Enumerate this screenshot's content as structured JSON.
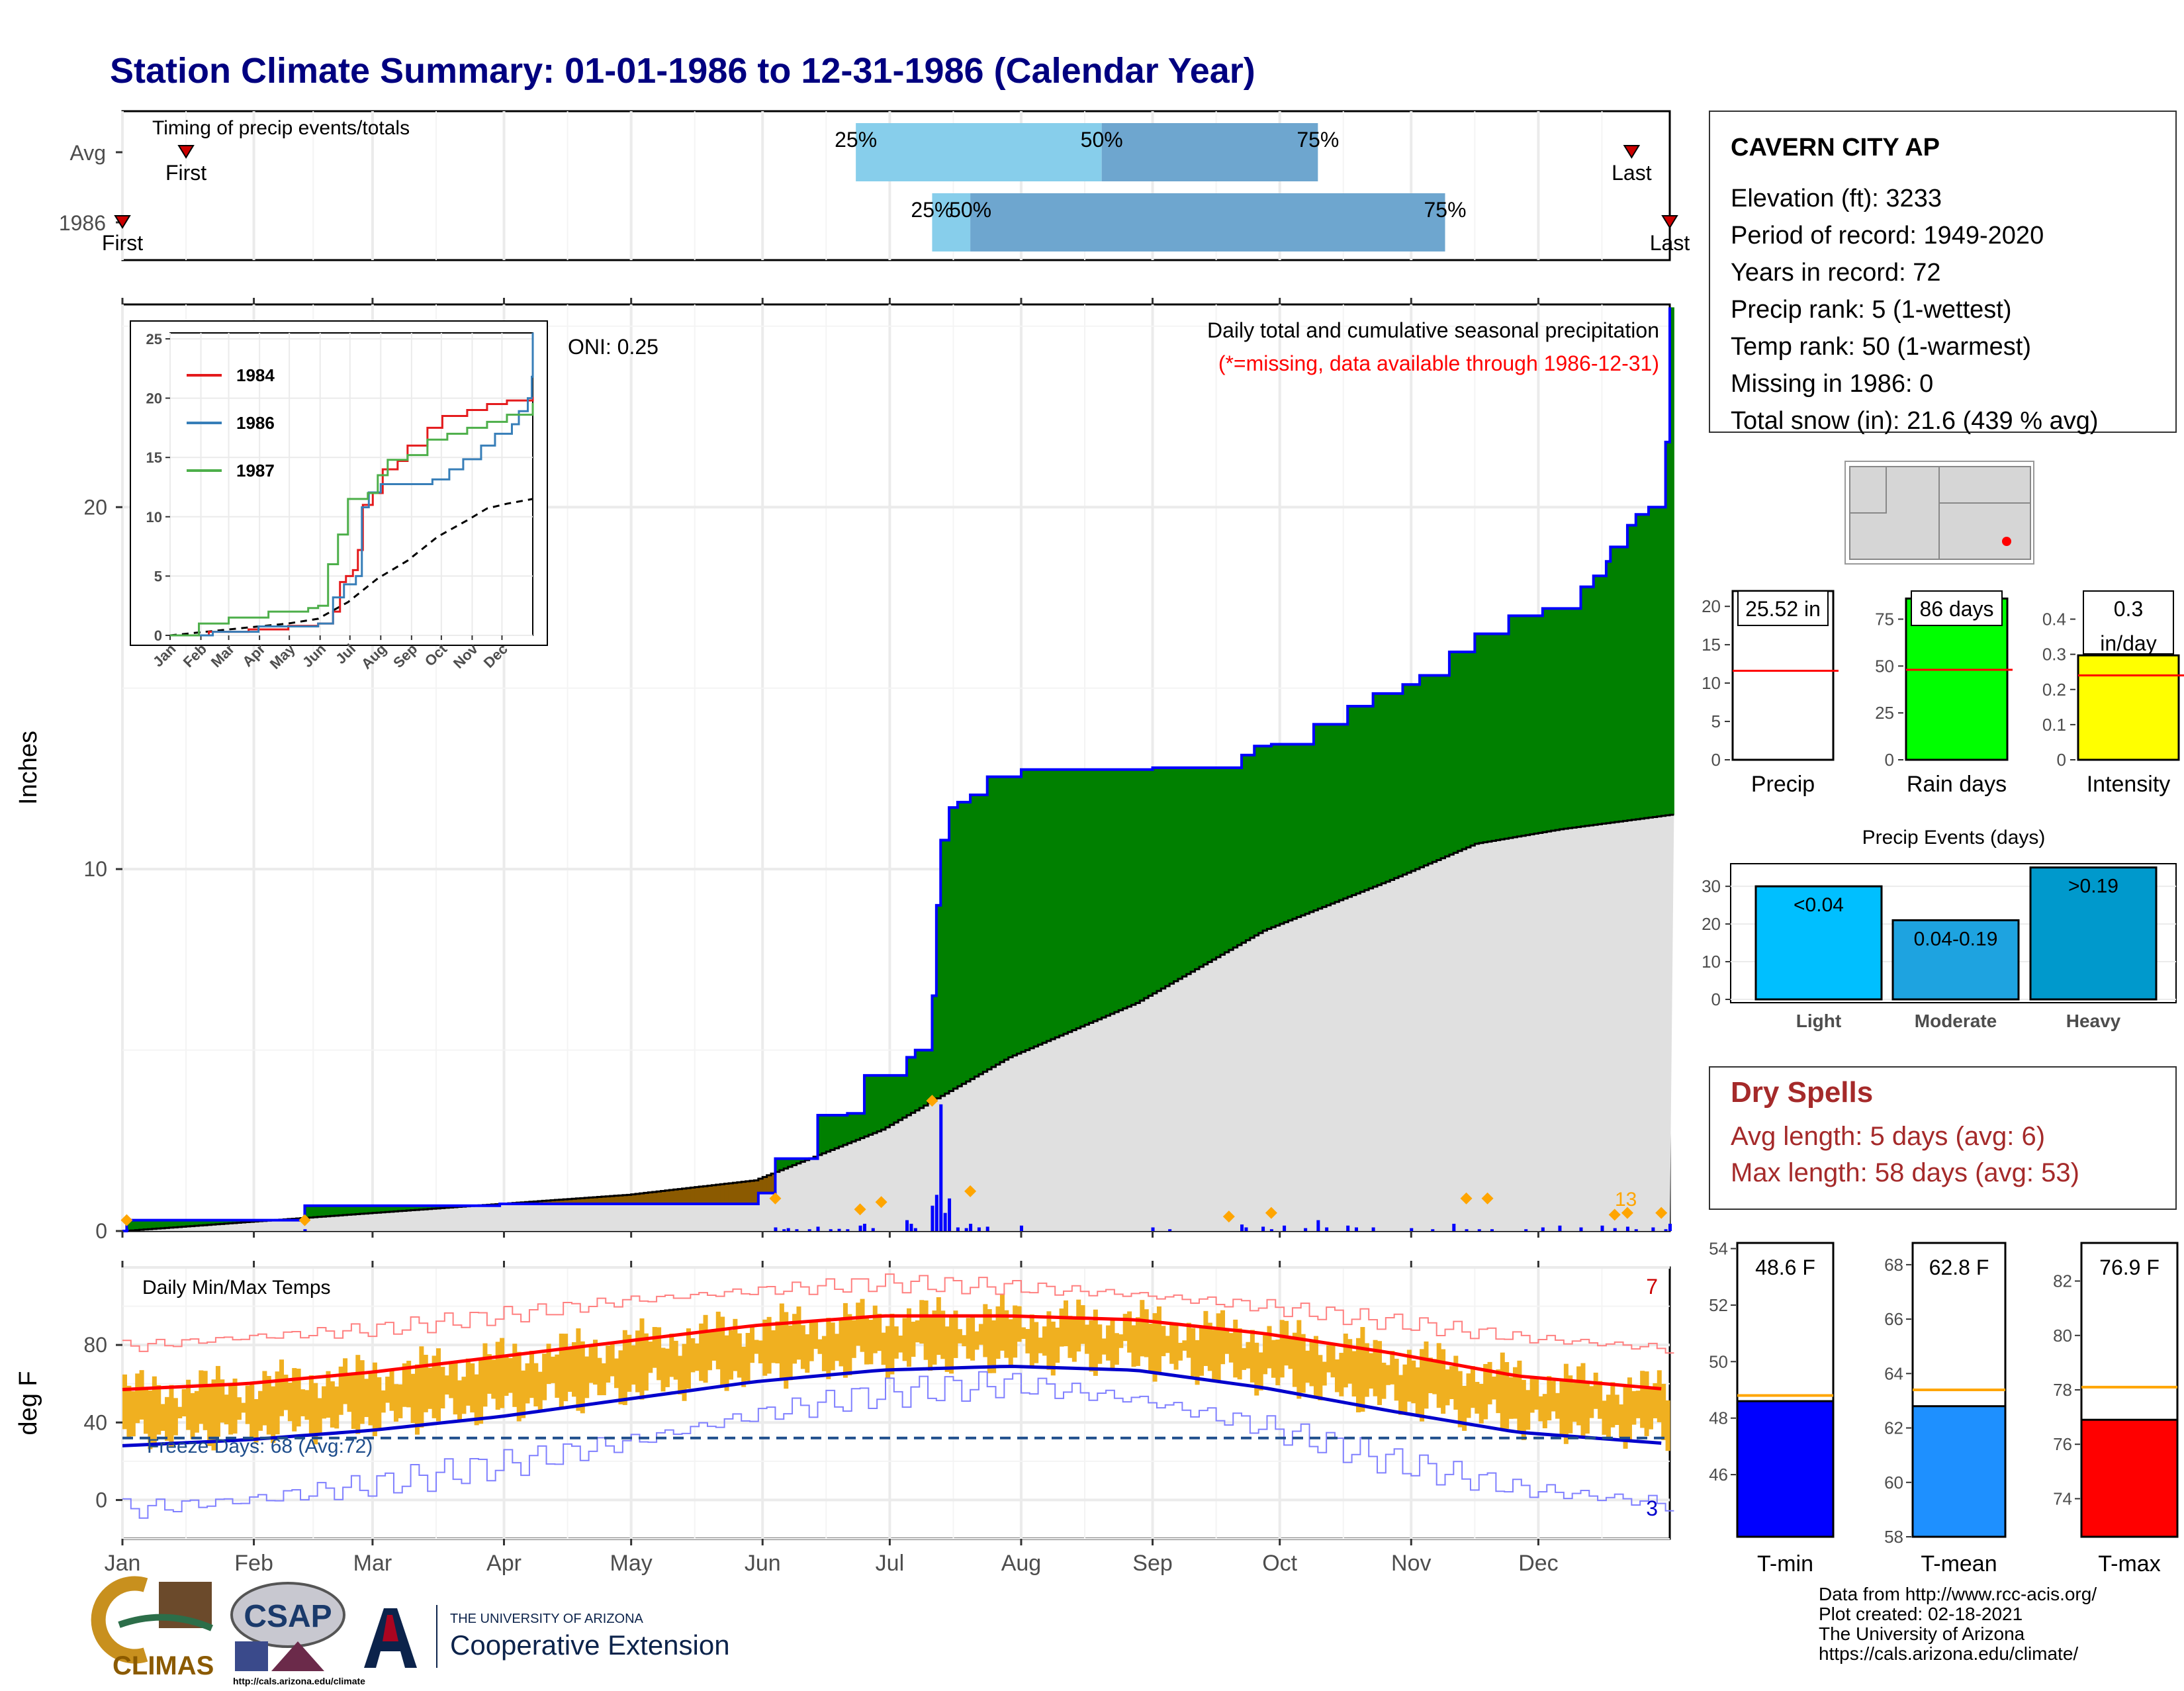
{
  "title": "Station Climate Summary: 01-01-1986 to 12-31-1986 (Calendar Year)",
  "colors": {
    "title": "#000080",
    "precip_green": "#008000",
    "deficit_brown": "#8b5a00",
    "avg_grey": "#e0e0e0",
    "cum_line": "#0000ff",
    "daily_bar": "#0000ff",
    "event_marker": "#ffa500",
    "missing_text": "#ff0000",
    "temp_bar": "#f0b020",
    "tmax_avg": "#ff0000",
    "tmin_avg": "#0000cc",
    "tmax_record": "#ff8080",
    "tmin_record": "#8080ff",
    "freeze": "#1f4e8c",
    "dry_spell": "#a52a2a",
    "light": "#00bfff",
    "moderate": "#1ea3e0",
    "heavy": "#0099cc",
    "q_light": "#87ceeb",
    "q_dark": "#6ea6cf",
    "tmin_fill": "#0000ff",
    "tmean_fill": "#1e90ff",
    "tmax_fill": "#ff0000",
    "rain_fill": "#00ff00",
    "int_fill": "#ffff00",
    "ref_red": "#ff0000",
    "ref_orange": "#ffa500"
  },
  "timing": {
    "title": "Timing of precip events/totals",
    "rows": [
      {
        "label": "Avg",
        "first_label": "First",
        "last_label": "Last",
        "first": 16,
        "last": 357,
        "q25": 174,
        "q50": 232,
        "q75": 283,
        "q25_label": "25%",
        "q50_label": "50%",
        "q75_label": "75%"
      },
      {
        "label": "1986",
        "first_label": "First",
        "last_label": "Last",
        "first": 1,
        "last": 366,
        "q25": 192,
        "q50": 201,
        "q75": 313,
        "q25_label": "25%",
        "q50_label": "50%",
        "q75_label": "75%"
      }
    ]
  },
  "precip_panel": {
    "ylabel": "Inches",
    "yticks": [
      0,
      10,
      20
    ],
    "ymax": 25.6,
    "oni_label": "ONI: 0.25",
    "title": "Daily total and cumulative seasonal precipitation",
    "missing_note": "(*=missing, data available through 1986-12-31)",
    "max_day_label": "13",
    "cumulative_1986": [
      [
        1,
        0
      ],
      [
        2,
        0.3
      ],
      [
        43,
        0.3
      ],
      [
        44,
        0.7
      ],
      [
        90,
        0.75
      ],
      [
        131,
        0.75
      ],
      [
        151,
        1.05
      ],
      [
        155,
        2.0
      ],
      [
        165,
        3.2
      ],
      [
        172,
        3.25
      ],
      [
        176,
        4.3
      ],
      [
        186,
        4.8
      ],
      [
        188,
        5.0
      ],
      [
        192,
        6.5
      ],
      [
        193,
        9.0
      ],
      [
        194,
        10.8
      ],
      [
        196,
        11.7
      ],
      [
        198,
        11.85
      ],
      [
        201,
        12.05
      ],
      [
        205,
        12.55
      ],
      [
        213,
        12.75
      ],
      [
        244,
        12.8
      ],
      [
        265,
        13.15
      ],
      [
        268,
        13.4
      ],
      [
        272,
        13.45
      ],
      [
        282,
        14.0
      ],
      [
        290,
        14.5
      ],
      [
        296,
        14.85
      ],
      [
        303,
        15.1
      ],
      [
        307,
        15.35
      ],
      [
        314,
        16.0
      ],
      [
        320,
        16.5
      ],
      [
        328,
        17.0
      ],
      [
        336,
        17.2
      ],
      [
        345,
        17.8
      ],
      [
        348,
        18.1
      ],
      [
        351,
        18.5
      ],
      [
        352,
        18.9
      ],
      [
        356,
        19.5
      ],
      [
        358,
        19.8
      ],
      [
        361,
        20.0
      ],
      [
        365,
        21.8
      ],
      [
        366,
        25.52
      ]
    ],
    "cumulative_avg_end": 11.5,
    "daily_bars": [
      [
        2,
        0.05
      ],
      [
        44,
        0.05
      ],
      [
        155,
        0.1
      ],
      [
        157,
        0.05
      ],
      [
        158,
        0.08
      ],
      [
        160,
        0.05
      ],
      [
        163,
        0.05
      ],
      [
        165,
        0.12
      ],
      [
        168,
        0.05
      ],
      [
        170,
        0.06
      ],
      [
        172,
        0.05
      ],
      [
        175,
        0.15
      ],
      [
        176,
        0.2
      ],
      [
        178,
        0.08
      ],
      [
        186,
        0.3
      ],
      [
        187,
        0.2
      ],
      [
        188,
        0.08
      ],
      [
        192,
        0.7
      ],
      [
        193,
        1.0
      ],
      [
        194,
        3.5
      ],
      [
        195,
        0.5
      ],
      [
        196,
        0.9
      ],
      [
        198,
        0.1
      ],
      [
        200,
        0.08
      ],
      [
        201,
        0.2
      ],
      [
        203,
        0.1
      ],
      [
        205,
        0.12
      ],
      [
        213,
        0.15
      ],
      [
        244,
        0.1
      ],
      [
        248,
        0.05
      ],
      [
        265,
        0.18
      ],
      [
        266,
        0.1
      ],
      [
        270,
        0.12
      ],
      [
        272,
        0.05
      ],
      [
        275,
        0.15
      ],
      [
        280,
        0.08
      ],
      [
        283,
        0.3
      ],
      [
        285,
        0.1
      ],
      [
        290,
        0.15
      ],
      [
        292,
        0.1
      ],
      [
        296,
        0.1
      ],
      [
        305,
        0.08
      ],
      [
        310,
        0.05
      ],
      [
        315,
        0.2
      ],
      [
        318,
        0.05
      ],
      [
        321,
        0.05
      ],
      [
        324,
        0.05
      ],
      [
        332,
        0.05
      ],
      [
        336,
        0.1
      ],
      [
        340,
        0.15
      ],
      [
        345,
        0.1
      ],
      [
        350,
        0.15
      ],
      [
        353,
        0.08
      ],
      [
        356,
        0.12
      ],
      [
        358,
        0.05
      ],
      [
        362,
        0.1
      ],
      [
        365,
        0.05
      ],
      [
        366,
        0.2
      ]
    ],
    "event_markers": [
      [
        2,
        0.3
      ],
      [
        44,
        0.3
      ],
      [
        155,
        0.9
      ],
      [
        175,
        0.6
      ],
      [
        180,
        0.8
      ],
      [
        192,
        3.6
      ],
      [
        201,
        1.1
      ],
      [
        262,
        0.4
      ],
      [
        272,
        0.5
      ],
      [
        318,
        0.9
      ],
      [
        323,
        0.9
      ],
      [
        353,
        0.45
      ],
      [
        356,
        0.5
      ],
      [
        364,
        0.5
      ]
    ]
  },
  "inset": {
    "yticks": [
      0,
      5,
      10,
      15,
      20,
      25
    ],
    "months": [
      "Jan",
      "Feb",
      "Mar",
      "Apr",
      "May",
      "Jun",
      "Jul",
      "Aug",
      "Sep",
      "Oct",
      "Nov",
      "Dec"
    ],
    "series": [
      {
        "name": "1984",
        "color": "#e41a1c",
        "points": [
          [
            1,
            0
          ],
          [
            40,
            0.3
          ],
          [
            80,
            0.5
          ],
          [
            120,
            0.8
          ],
          [
            150,
            1.0
          ],
          [
            165,
            2.0
          ],
          [
            172,
            4.5
          ],
          [
            178,
            5.0
          ],
          [
            185,
            5.5
          ],
          [
            190,
            7.2
          ],
          [
            195,
            11.0
          ],
          [
            205,
            12.0
          ],
          [
            215,
            14.0
          ],
          [
            230,
            14.7
          ],
          [
            240,
            16.0
          ],
          [
            260,
            17.5
          ],
          [
            275,
            18.5
          ],
          [
            300,
            19.0
          ],
          [
            320,
            19.5
          ],
          [
            340,
            19.8
          ],
          [
            366,
            20.1
          ]
        ]
      },
      {
        "name": "1986",
        "color": "#377eb8",
        "points": [
          [
            1,
            0
          ],
          [
            44,
            0.3
          ],
          [
            90,
            0.75
          ],
          [
            150,
            1.0
          ],
          [
            165,
            3.2
          ],
          [
            176,
            4.3
          ],
          [
            188,
            5.0
          ],
          [
            194,
            10.8
          ],
          [
            201,
            12.05
          ],
          [
            213,
            12.75
          ],
          [
            265,
            13.15
          ],
          [
            282,
            14.0
          ],
          [
            296,
            14.85
          ],
          [
            314,
            16.0
          ],
          [
            328,
            17.0
          ],
          [
            345,
            17.8
          ],
          [
            352,
            18.9
          ],
          [
            361,
            20.0
          ],
          [
            365,
            21.8
          ],
          [
            366,
            25.52
          ]
        ]
      },
      {
        "name": "1987",
        "color": "#4daf4a",
        "points": [
          [
            1,
            0
          ],
          [
            30,
            1.0
          ],
          [
            60,
            1.5
          ],
          [
            100,
            2.0
          ],
          [
            140,
            2.3
          ],
          [
            150,
            2.5
          ],
          [
            160,
            6.0
          ],
          [
            170,
            8.5
          ],
          [
            180,
            11.5
          ],
          [
            200,
            12.0
          ],
          [
            210,
            13.5
          ],
          [
            220,
            14.8
          ],
          [
            240,
            15.2
          ],
          [
            260,
            16.5
          ],
          [
            280,
            17.0
          ],
          [
            300,
            17.5
          ],
          [
            320,
            18.0
          ],
          [
            340,
            18.6
          ],
          [
            366,
            19.6
          ]
        ]
      }
    ],
    "avg_points": [
      [
        1,
        0
      ],
      [
        60,
        0.5
      ],
      [
        120,
        1.0
      ],
      [
        150,
        1.4
      ],
      [
        180,
        2.8
      ],
      [
        210,
        4.8
      ],
      [
        240,
        6.3
      ],
      [
        270,
        8.3
      ],
      [
        300,
        9.7
      ],
      [
        320,
        10.7
      ],
      [
        340,
        11.1
      ],
      [
        366,
        11.5
      ]
    ]
  },
  "info": {
    "station": "CAVERN CITY AP",
    "lines": [
      "Elevation (ft): 3233",
      "Period of record: 1949-2020",
      "Years in record: 72",
      "Precip rank: 5 (1-wettest)",
      "Temp rank: 50 (1-warmest)",
      "Missing in 1986: 0",
      "Total snow (in): 21.6 (439 % avg)"
    ]
  },
  "summary_bars": [
    {
      "label": "Precip",
      "value_text": "25.52 in",
      "value": 25.52,
      "avg": 11.6,
      "ymax": 22,
      "ticks": [
        0,
        5,
        10,
        15,
        20
      ],
      "fill": "#ffffff"
    },
    {
      "label": "Rain days",
      "value_text": "86 days",
      "value": 86,
      "avg": 48,
      "ymax": 90,
      "ticks": [
        0,
        25,
        50,
        75
      ],
      "fill": "#00ff00"
    },
    {
      "label": "Intensity",
      "value_text": "0.3\nin/day",
      "value": 0.297,
      "avg": 0.24,
      "ymax": 0.48,
      "ticks": [
        0.0,
        0.1,
        0.2,
        0.3,
        0.4
      ],
      "fill": "#ffff00"
    }
  ],
  "events": {
    "title": "Precip Events (days)",
    "ticks": [
      0,
      10,
      20,
      30
    ],
    "ymax": 36,
    "bars": [
      {
        "label": "Light",
        "range": "<0.04",
        "value": 30,
        "color": "#00bfff"
      },
      {
        "label": "Moderate",
        "range": "0.04-0.19",
        "value": 21,
        "color": "#1ea3e0"
      },
      {
        "label": "Heavy",
        "range": ">0.19",
        "value": 35,
        "color": "#0099cc"
      }
    ]
  },
  "dry_spells": {
    "title": "Dry Spells",
    "avg_line": "Avg length: 5 days (avg: 6)",
    "max_line": "Max length: 58 days (avg: 53)"
  },
  "temp_panel": {
    "title": "Daily Min/Max Temps",
    "ylabel": "deg F",
    "yticks": [
      0,
      40,
      80
    ],
    "ymin": -20,
    "ymax": 120,
    "freeze_label": "Freeze Days: 68 (Avg:72)",
    "freeze_line": 32,
    "count_max": "7",
    "count_min": "3",
    "months": [
      "Jan",
      "Feb",
      "Mar",
      "Apr",
      "May",
      "Jun",
      "Jul",
      "Aug",
      "Sep",
      "Oct",
      "Nov",
      "Dec"
    ],
    "tmax_avg": [
      [
        1,
        57
      ],
      [
        30,
        60
      ],
      [
        60,
        66
      ],
      [
        90,
        74
      ],
      [
        120,
        82
      ],
      [
        150,
        90
      ],
      [
        180,
        95
      ],
      [
        210,
        95
      ],
      [
        240,
        93
      ],
      [
        270,
        86
      ],
      [
        300,
        76
      ],
      [
        330,
        64
      ],
      [
        366,
        57
      ]
    ],
    "tmin_avg": [
      [
        1,
        28
      ],
      [
        30,
        31
      ],
      [
        60,
        36
      ],
      [
        90,
        43
      ],
      [
        120,
        52
      ],
      [
        150,
        61
      ],
      [
        180,
        67
      ],
      [
        210,
        69
      ],
      [
        240,
        67
      ],
      [
        270,
        58
      ],
      [
        300,
        46
      ],
      [
        330,
        35
      ],
      [
        366,
        29
      ]
    ],
    "tmax_record": [
      [
        1,
        79
      ],
      [
        30,
        84
      ],
      [
        60,
        88
      ],
      [
        90,
        95
      ],
      [
        120,
        103
      ],
      [
        150,
        108
      ],
      [
        180,
        112
      ],
      [
        210,
        110
      ],
      [
        240,
        106
      ],
      [
        270,
        100
      ],
      [
        300,
        92
      ],
      [
        330,
        84
      ],
      [
        366,
        78
      ]
    ],
    "tmin_record": [
      [
        1,
        -5
      ],
      [
        30,
        0
      ],
      [
        60,
        8
      ],
      [
        90,
        18
      ],
      [
        120,
        30
      ],
      [
        150,
        44
      ],
      [
        180,
        55
      ],
      [
        210,
        60
      ],
      [
        240,
        52
      ],
      [
        270,
        38
      ],
      [
        300,
        20
      ],
      [
        330,
        6
      ],
      [
        366,
        -2
      ]
    ]
  },
  "temp_bars": [
    {
      "label": "T-min",
      "value_text": "48.6 F",
      "value": 48.6,
      "avg": 48.8,
      "ymin": 43.8,
      "ymax": 54.2,
      "ticks": [
        46,
        48,
        50,
        52,
        54
      ],
      "fill": "#0000ff"
    },
    {
      "label": "T-mean",
      "value_text": "62.8 F",
      "value": 62.8,
      "avg": 63.4,
      "ymin": 58,
      "ymax": 68.8,
      "ticks": [
        58,
        60,
        62,
        64,
        66,
        68
      ],
      "fill": "#1e90ff"
    },
    {
      "label": "T-max",
      "value_text": "76.9 F",
      "value": 76.9,
      "avg": 78.1,
      "ymin": 72.6,
      "ymax": 83.4,
      "ticks": [
        74,
        76,
        78,
        80,
        82
      ],
      "fill": "#ff0000"
    }
  ],
  "logos": {
    "climas": "CLIMAS",
    "csap": "CSAP",
    "csap_url": "http://cals.arizona.edu/climate",
    "ua_small": "THE UNIVERSITY OF ARIZONA",
    "ua_big": "Cooperative Extension"
  },
  "footer": [
    "Data from http://www.rcc-acis.org/",
    "Plot created: 02-18-2021",
    "The University of Arizona",
    "https://cals.arizona.edu/climate/"
  ]
}
